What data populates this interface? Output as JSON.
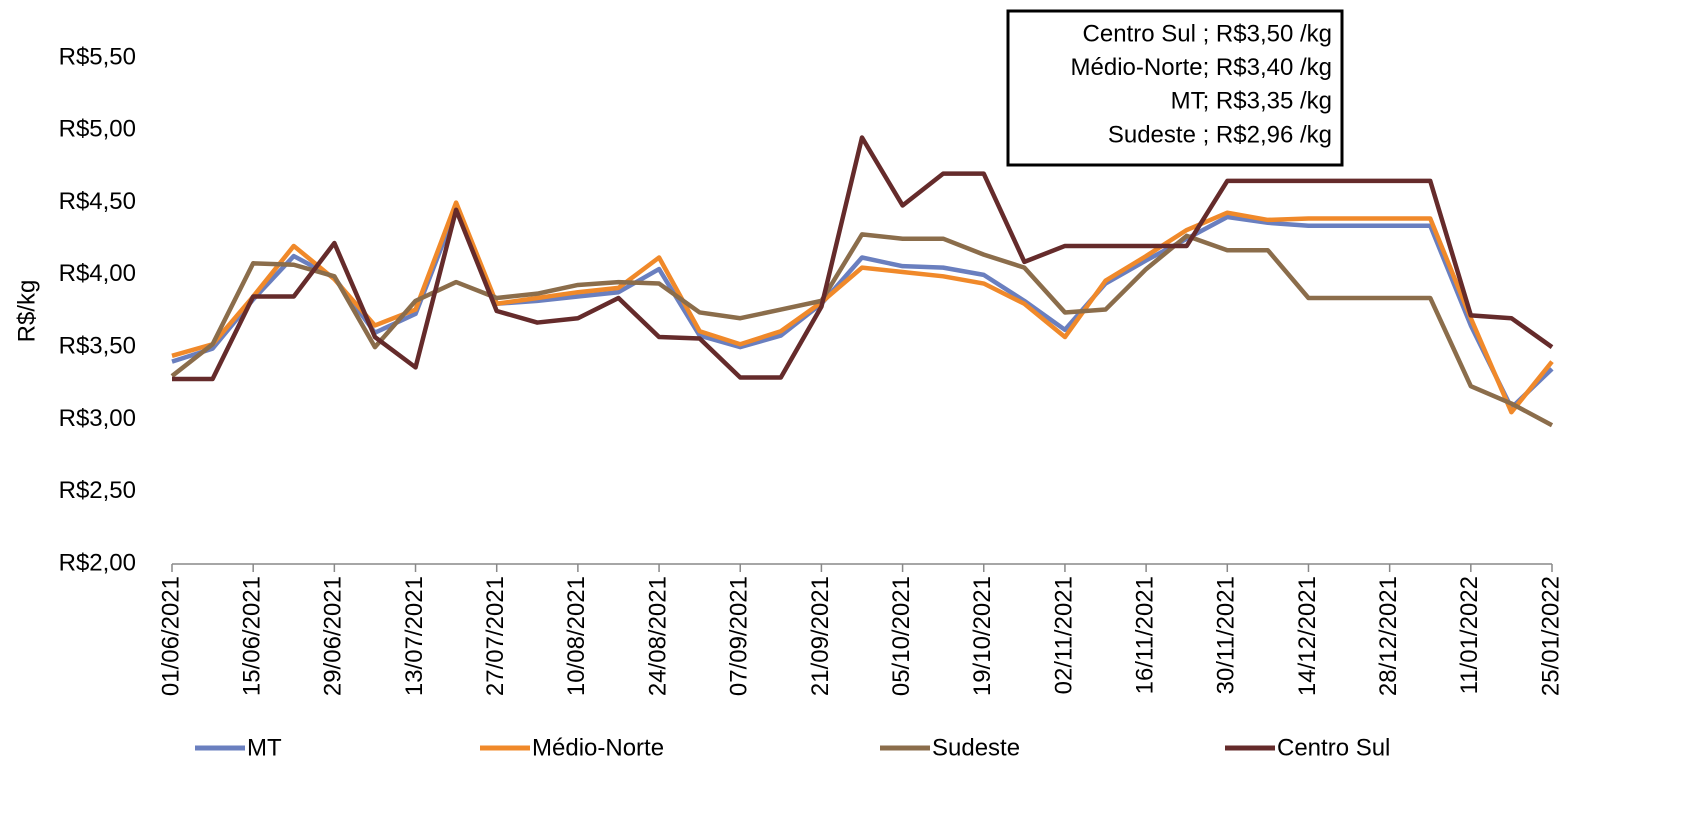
{
  "chart_data": {
    "type": "line",
    "y_label": "R$/kg",
    "annotations": [
      "Centro Sul ;  R$3,50 /kg",
      "Médio-Norte;  R$3,40 /kg",
      "MT;  R$3,35 /kg",
      "Sudeste ;  R$2,96 /kg"
    ],
    "categories": [
      "01/06/2021",
      null,
      "15/06/2021",
      null,
      "29/06/2021",
      null,
      "13/07/2021",
      null,
      "27/07/2021",
      null,
      "10/08/2021",
      null,
      "24/08/2021",
      null,
      "07/09/2021",
      null,
      "21/09/2021",
      null,
      "05/10/2021",
      null,
      "19/10/2021",
      null,
      "02/11/2021",
      null,
      "16/11/2021",
      null,
      "30/11/2021",
      null,
      "14/12/2021",
      null,
      "28/12/2021",
      null,
      "11/01/2022",
      null,
      "25/01/2022"
    ],
    "ylim": [
      2,
      5.75
    ],
    "yticks": [
      {
        "value": 2,
        "label": "R$2,00"
      },
      {
        "value": 2.5,
        "label": "R$2,50"
      },
      {
        "value": 3,
        "label": "R$3,00"
      },
      {
        "value": 3.5,
        "label": "R$3,50"
      },
      {
        "value": 4,
        "label": "R$4,00"
      },
      {
        "value": 4.5,
        "label": "R$4,50"
      },
      {
        "value": 5,
        "label": "R$5,00"
      },
      {
        "value": 5.5,
        "label": "R$5,50"
      }
    ],
    "series": [
      {
        "name": "MT",
        "color": "#6a7fbf",
        "values": [
          3.4,
          3.49,
          3.83,
          4.13,
          3.98,
          3.6,
          3.73,
          4.45,
          3.8,
          3.82,
          3.85,
          3.88,
          4.04,
          3.58,
          3.5,
          3.58,
          3.8,
          4.12,
          4.06,
          4.05,
          4.0,
          3.82,
          3.62,
          3.94,
          4.1,
          4.25,
          4.4,
          4.36,
          4.34,
          4.34,
          4.34,
          4.34,
          3.65,
          3.08,
          3.35
        ]
      },
      {
        "name": "Médio-Norte",
        "color": "#f0892a",
        "values": [
          3.44,
          3.52,
          3.85,
          4.2,
          3.97,
          3.65,
          3.76,
          4.5,
          3.8,
          3.84,
          3.88,
          3.91,
          4.12,
          3.61,
          3.52,
          3.61,
          3.81,
          4.05,
          4.02,
          3.99,
          3.94,
          3.8,
          3.57,
          3.96,
          4.13,
          4.31,
          4.43,
          4.38,
          4.39,
          4.39,
          4.39,
          4.39,
          3.7,
          3.05,
          3.4
        ]
      },
      {
        "name": "Sudeste",
        "color": "#8b6d4b",
        "values": [
          3.3,
          3.52,
          4.08,
          4.07,
          3.99,
          3.5,
          3.82,
          3.95,
          3.84,
          3.87,
          3.93,
          3.95,
          3.94,
          3.74,
          3.7,
          3.76,
          3.82,
          4.28,
          4.25,
          4.25,
          4.14,
          4.05,
          3.74,
          3.76,
          4.04,
          4.27,
          4.17,
          4.17,
          3.84,
          3.84,
          3.84,
          3.84,
          3.23,
          3.11,
          2.96
        ]
      },
      {
        "name": "Centro Sul",
        "color": "#652b2b",
        "values": [
          3.28,
          3.28,
          3.85,
          3.85,
          4.22,
          3.57,
          3.36,
          4.45,
          3.75,
          3.67,
          3.7,
          3.84,
          3.57,
          3.56,
          3.29,
          3.29,
          3.78,
          4.95,
          4.48,
          4.7,
          4.7,
          4.09,
          4.2,
          4.2,
          4.2,
          4.2,
          4.65,
          4.65,
          4.65,
          4.65,
          4.65,
          4.65,
          3.72,
          3.7,
          3.5
        ]
      }
    ],
    "grid": false
  }
}
